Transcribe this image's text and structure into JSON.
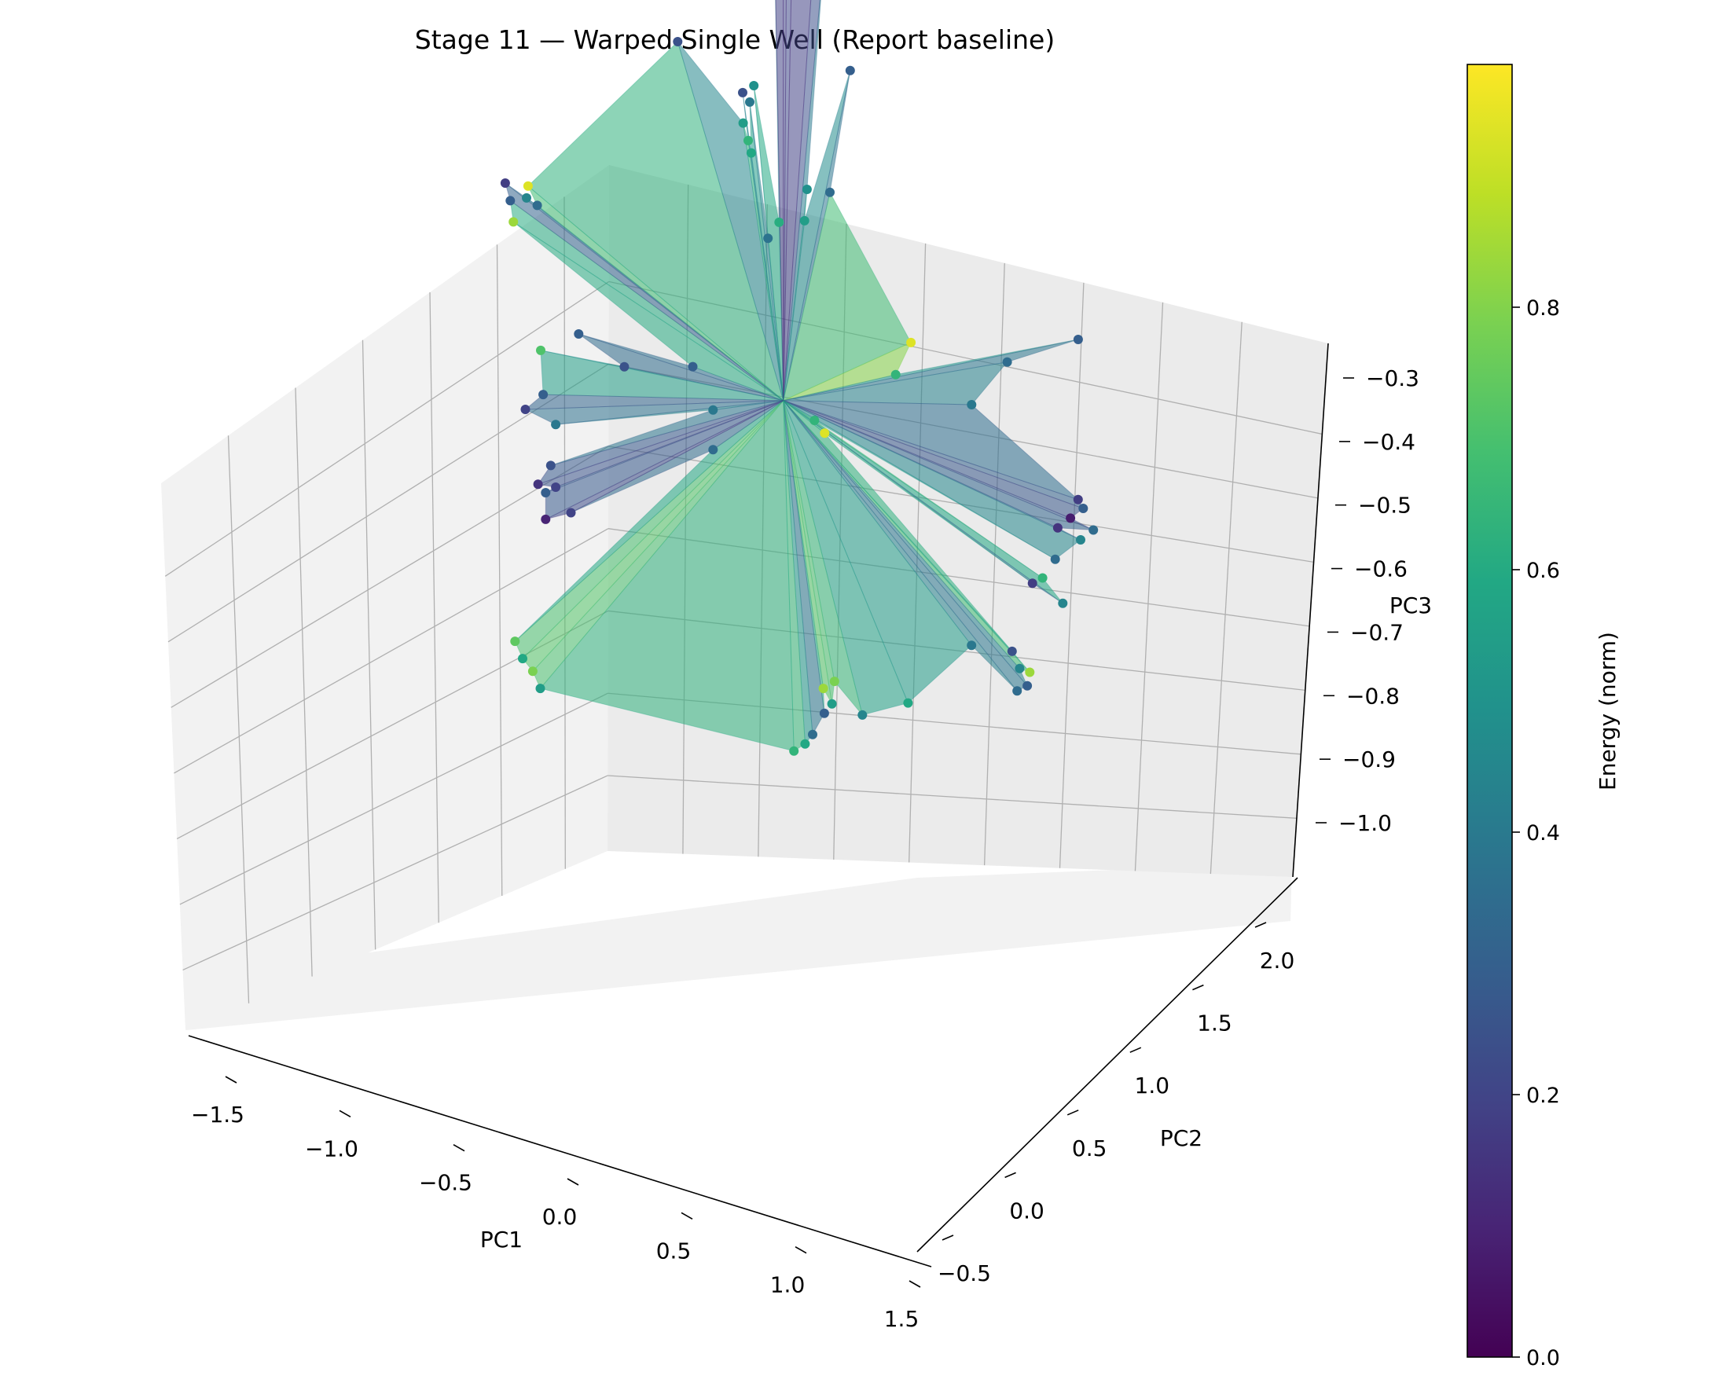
{
  "chart_data": {
    "type": "surface3d",
    "title": "Stage 11 — Warped Single Well (Report baseline)",
    "xlabel": "PC1",
    "ylabel": "PC2",
    "zlabel": "PC3",
    "colorbar_label": "Energy (norm)",
    "colormap": "viridis",
    "xlim": [
      -1.75,
      1.6
    ],
    "ylim": [
      -0.85,
      2.25
    ],
    "zlim": [
      -1.05,
      -0.28
    ],
    "x_ticks": [
      -1.5,
      -1.0,
      -0.5,
      0.0,
      0.5,
      1.0,
      1.5
    ],
    "x_tick_labels": [
      "−1.5",
      "−1.0",
      "−0.5",
      "0.0",
      "0.5",
      "1.0",
      "1.5"
    ],
    "y_ticks": [
      -0.5,
      0.0,
      0.5,
      1.0,
      1.5,
      2.0
    ],
    "y_tick_labels": [
      "−0.5",
      "0.0",
      "0.5",
      "1.0",
      "1.5",
      "2.0"
    ],
    "z_ticks": [
      -1.0,
      -0.9,
      -0.8,
      -0.7,
      -0.6,
      -0.5,
      -0.4,
      -0.3
    ],
    "z_tick_labels": [
      "−1.0",
      "−0.9",
      "−0.8",
      "−0.7",
      "−0.6",
      "−0.5",
      "−0.4",
      "−0.3"
    ],
    "colorbar_ticks": [
      0.0,
      0.2,
      0.4,
      0.6,
      0.8
    ],
    "colorbar_tick_labels": [
      "0.0",
      "0.2",
      "0.4",
      "0.6",
      "0.8"
    ],
    "grid": true,
    "points": [
      {
        "x": -1.3,
        "y": 1.1,
        "z": -0.6,
        "e": 0.18
      },
      {
        "x": -1.28,
        "y": 1.12,
        "z": -0.62,
        "e": 0.3
      },
      {
        "x": -1.18,
        "y": 1.25,
        "z": -0.63,
        "e": 0.35
      },
      {
        "x": -1.22,
        "y": 1.2,
        "z": -0.62,
        "e": 0.45
      },
      {
        "x": -1.2,
        "y": 1.15,
        "z": -0.6,
        "e": 0.95
      },
      {
        "x": -1.26,
        "y": 1.1,
        "z": -0.64,
        "e": 0.85
      },
      {
        "x": -0.15,
        "y": 1.8,
        "z": -0.28,
        "e": 0.15
      },
      {
        "x": -0.1,
        "y": 1.85,
        "z": -0.27,
        "e": 0.18
      },
      {
        "x": 0.05,
        "y": 1.8,
        "z": -0.29,
        "e": 0.12
      },
      {
        "x": 0.1,
        "y": 1.78,
        "z": -0.3,
        "e": 0.2
      },
      {
        "x": -0.05,
        "y": 1.75,
        "z": -0.31,
        "e": 0.08
      },
      {
        "x": -0.08,
        "y": 1.7,
        "z": -0.34,
        "e": 0.05
      },
      {
        "x": -0.55,
        "y": 1.5,
        "z": -0.42,
        "e": 0.25
      },
      {
        "x": 0.2,
        "y": 1.9,
        "z": -0.43,
        "e": 0.3
      },
      {
        "x": -0.2,
        "y": 1.6,
        "z": -0.45,
        "e": 0.5
      },
      {
        "x": -0.25,
        "y": 1.58,
        "z": -0.46,
        "e": 0.25
      },
      {
        "x": -0.22,
        "y": 1.6,
        "z": -0.47,
        "e": 0.4
      },
      {
        "x": -0.24,
        "y": 1.55,
        "z": -0.49,
        "e": 0.55
      },
      {
        "x": -0.22,
        "y": 1.57,
        "z": -0.51,
        "e": 0.65
      },
      {
        "x": -0.2,
        "y": 1.55,
        "z": -0.52,
        "e": 0.6
      },
      {
        "x": 0.05,
        "y": 1.65,
        "z": -0.55,
        "e": 0.5
      },
      {
        "x": 0.15,
        "y": 1.7,
        "z": -0.55,
        "e": 0.35
      },
      {
        "x": -0.05,
        "y": 1.5,
        "z": -0.58,
        "e": 0.62
      },
      {
        "x": 0.05,
        "y": 1.6,
        "z": -0.58,
        "e": 0.55
      },
      {
        "x": -0.1,
        "y": 1.48,
        "z": -0.6,
        "e": 0.38
      },
      {
        "x": 0.6,
        "y": 1.5,
        "z": -0.66,
        "e": 0.95
      },
      {
        "x": 0.55,
        "y": 1.4,
        "z": -0.69,
        "e": 0.65
      },
      {
        "x": 0.25,
        "y": 1.2,
        "z": -0.76,
        "e": 0.95
      },
      {
        "x": 0.2,
        "y": 1.2,
        "z": -0.75,
        "e": 0.65
      },
      {
        "x": 1.1,
        "y": 1.4,
        "z": -0.63,
        "e": 0.35
      },
      {
        "x": 0.95,
        "y": 1.3,
        "z": -0.68,
        "e": 0.4
      },
      {
        "x": 1.4,
        "y": 1.6,
        "z": -0.6,
        "e": 0.3
      },
      {
        "x": 1.5,
        "y": 1.2,
        "z": -0.73,
        "e": 0.18
      },
      {
        "x": 1.4,
        "y": 1.2,
        "z": -0.77,
        "e": 0.15
      },
      {
        "x": 1.45,
        "y": 1.25,
        "z": -0.76,
        "e": 0.08
      },
      {
        "x": 1.5,
        "y": 1.3,
        "z": -0.75,
        "e": 0.3
      },
      {
        "x": 1.55,
        "y": 1.3,
        "z": -0.77,
        "e": 0.35
      },
      {
        "x": 1.5,
        "y": 1.25,
        "z": -0.78,
        "e": 0.45
      },
      {
        "x": 1.4,
        "y": 1.15,
        "z": -0.8,
        "e": 0.35
      },
      {
        "x": 1.35,
        "y": 1.1,
        "z": -0.82,
        "e": 0.65
      },
      {
        "x": 1.3,
        "y": 1.1,
        "z": -0.83,
        "e": 0.18
      },
      {
        "x": 1.45,
        "y": 1.1,
        "z": -0.84,
        "e": 0.45
      },
      {
        "x": 1.25,
        "y": 0.9,
        "z": -0.89,
        "e": 0.25
      },
      {
        "x": 1.3,
        "y": 0.85,
        "z": -0.9,
        "e": 0.45
      },
      {
        "x": 1.35,
        "y": 0.85,
        "z": -0.9,
        "e": 0.85
      },
      {
        "x": 1.35,
        "y": 0.8,
        "z": -0.91,
        "e": 0.3
      },
      {
        "x": 1.3,
        "y": 0.8,
        "z": -0.92,
        "e": 0.35
      },
      {
        "x": 1.05,
        "y": 0.9,
        "z": -0.9,
        "e": 0.4
      },
      {
        "x": 0.8,
        "y": 0.65,
        "z": -0.96,
        "e": 0.6
      },
      {
        "x": 0.6,
        "y": 0.55,
        "z": -0.98,
        "e": 0.45
      },
      {
        "x": 0.45,
        "y": 0.6,
        "z": -0.96,
        "e": 0.8
      },
      {
        "x": 0.4,
        "y": 0.58,
        "z": -0.97,
        "e": 0.85
      },
      {
        "x": 0.45,
        "y": 0.55,
        "z": -0.98,
        "e": 0.55
      },
      {
        "x": 0.42,
        "y": 0.52,
        "z": -0.99,
        "e": 0.3
      },
      {
        "x": 0.38,
        "y": 0.45,
        "z": -1.01,
        "e": 0.35
      },
      {
        "x": 0.35,
        "y": 0.42,
        "z": -1.02,
        "e": 0.6
      },
      {
        "x": 0.3,
        "y": 0.4,
        "z": -1.03,
        "e": 0.65
      },
      {
        "x": -0.4,
        "y": 1.2,
        "z": -0.74,
        "e": 0.3
      },
      {
        "x": -0.25,
        "y": 1.0,
        "z": -0.8,
        "e": 0.35
      },
      {
        "x": -0.3,
        "y": 1.2,
        "z": -0.78,
        "e": 0.4
      },
      {
        "x": -0.7,
        "y": 1.05,
        "z": -0.75,
        "e": 0.25
      },
      {
        "x": -0.9,
        "y": 0.95,
        "z": -0.72,
        "e": 0.3
      },
      {
        "x": -1.1,
        "y": 1.0,
        "z": -0.76,
        "e": 0.72
      },
      {
        "x": -1.15,
        "y": 0.9,
        "z": -0.82,
        "e": 0.2
      },
      {
        "x": -1.05,
        "y": 0.85,
        "z": -0.79,
        "e": 0.3
      },
      {
        "x": -0.95,
        "y": 0.7,
        "z": -0.8,
        "e": 0.4
      },
      {
        "x": -1.0,
        "y": 0.8,
        "z": -0.86,
        "e": 0.25
      },
      {
        "x": -1.05,
        "y": 0.75,
        "z": -0.88,
        "e": 0.15
      },
      {
        "x": -1.02,
        "y": 0.78,
        "z": -0.89,
        "e": 0.3
      },
      {
        "x": -0.95,
        "y": 0.7,
        "z": -0.87,
        "e": 0.2
      },
      {
        "x": -0.85,
        "y": 0.6,
        "z": -0.88,
        "e": 0.2
      },
      {
        "x": -1.0,
        "y": 0.7,
        "z": -0.91,
        "e": 0.1
      },
      {
        "x": -1.05,
        "y": 0.3,
        "z": -1.01,
        "e": 0.75
      },
      {
        "x": -1.0,
        "y": 0.25,
        "z": -1.02,
        "e": 0.6
      },
      {
        "x": -0.95,
        "y": 0.25,
        "z": -1.03,
        "e": 0.8
      },
      {
        "x": -0.9,
        "y": 0.2,
        "z": -1.04,
        "e": 0.55
      }
    ]
  }
}
